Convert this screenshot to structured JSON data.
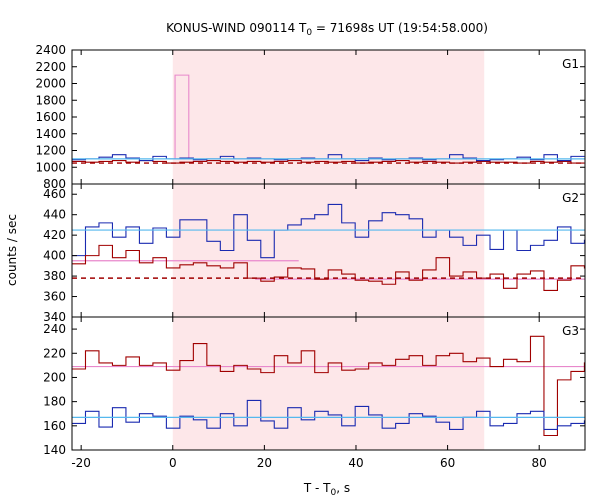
{
  "chart_data": {
    "type": "line",
    "title": "KONUS-WIND 090114 T",
    "title_sub": "0",
    "title_rest": " = 71698s UT (19:54:58.000)",
    "xlabel": "T - T",
    "xlabel_sub": "0",
    "xlabel_rest": ", s",
    "ylabel": "counts / sec",
    "xlim": [
      -22,
      90
    ],
    "x_ticks": [
      -20,
      0,
      20,
      40,
      60,
      80
    ],
    "x_tick_labels": [
      "-20",
      "0",
      "20",
      "40",
      "60",
      "80"
    ],
    "interval": {
      "start": 0,
      "end": 68,
      "color": "#fde7e9"
    },
    "colors": {
      "red": "#a00000",
      "blue": "#1a2ab0",
      "pink": "#e888cc",
      "cyan": "#55b8ee"
    },
    "bin_width": 2.944,
    "bin_start": -22,
    "panels": [
      {
        "label": "G1",
        "ylim": [
          800,
          2400
        ],
        "y_ticks": [
          800,
          1000,
          1200,
          1400,
          1600,
          1800,
          2000,
          2200,
          2400
        ],
        "y_tick_labels": [
          "800",
          "1000",
          "1200",
          "1400",
          "1600",
          "1800",
          "2000",
          "2200",
          "2400"
        ],
        "series": [
          {
            "color": "pink",
            "step_x": [
              0.5,
              3.5
            ],
            "step_y": [
              2100,
              1100
            ]
          },
          {
            "color": "red",
            "values": [
              1070,
              1060,
              1070,
              1080,
              1060,
              1080,
              1070,
              1050,
              1060,
              1070,
              1080,
              1070,
              1060,
              1070,
              1060,
              1070,
              1080,
              1060,
              1070,
              1060,
              1070,
              1050,
              1060,
              1070,
              1080,
              1060,
              1070,
              1060,
              1050,
              1060,
              1070,
              1060,
              1060,
              1050,
              1070,
              1060,
              1070,
              1050
            ]
          },
          {
            "color": "blue",
            "values": [
              1090,
              1100,
              1120,
              1150,
              1110,
              1080,
              1130,
              1100,
              1110,
              1090,
              1100,
              1130,
              1100,
              1110,
              1100,
              1090,
              1100,
              1110,
              1100,
              1150,
              1100,
              1080,
              1110,
              1090,
              1100,
              1110,
              1090,
              1100,
              1150,
              1110,
              1080,
              1090,
              1100,
              1120,
              1090,
              1150,
              1080,
              1130
            ]
          }
        ],
        "fits": [
          {
            "color": "cyan",
            "value": 1100,
            "dashed": false
          },
          {
            "color": "red",
            "value": 1050,
            "dashed": true
          }
        ]
      },
      {
        "label": "G2",
        "ylim": [
          340,
          470
        ],
        "y_ticks": [
          340,
          360,
          380,
          400,
          420,
          440,
          460
        ],
        "y_tick_labels": [
          "340",
          "360",
          "380",
          "400",
          "420",
          "440",
          "460"
        ],
        "series": [
          {
            "color": "pink",
            "value": 395,
            "x_range": [
              -22,
              27.5
            ]
          },
          {
            "color": "pink",
            "value": 377,
            "x_range": [
              18,
              90
            ]
          },
          {
            "color": "blue",
            "values": [
              400,
              428,
              432,
              418,
              428,
              412,
              427,
              418,
              435,
              435,
              414,
              405,
              440,
              415,
              398,
              425,
              430,
              436,
              440,
              450,
              432,
              418,
              434,
              442,
              440,
              436,
              418,
              425,
              418,
              410,
              420,
              406,
              425,
              405,
              410,
              415,
              428,
              412,
              415,
              420,
              405,
              428,
              412
            ]
          },
          {
            "color": "red",
            "values": [
              392,
              400,
              410,
              398,
              405,
              393,
              398,
              388,
              391,
              393,
              390,
              388,
              393,
              378,
              375,
              379,
              388,
              387,
              377,
              386,
              382,
              376,
              375,
              372,
              384,
              376,
              386,
              398,
              380,
              384,
              378,
              382,
              368,
              382,
              385,
              366,
              376,
              390,
              388,
              390,
              386,
              384,
              378
            ]
          }
        ],
        "fits": [
          {
            "color": "cyan",
            "value": 425,
            "dashed": false
          },
          {
            "color": "red",
            "value": 378,
            "dashed": true
          }
        ]
      },
      {
        "label": "G3",
        "ylim": [
          140,
          250
        ],
        "y_ticks": [
          140,
          160,
          180,
          200,
          220,
          240
        ],
        "y_tick_labels": [
          "140",
          "160",
          "180",
          "200",
          "220",
          "240"
        ],
        "series": [
          {
            "color": "pink",
            "value": 209,
            "x_range": [
              -22,
              90
            ]
          },
          {
            "color": "red",
            "values": [
              207,
              222,
              212,
              210,
              217,
              210,
              212,
              206,
              214,
              228,
              210,
              205,
              210,
              207,
              204,
              218,
              212,
              222,
              204,
              212,
              206,
              207,
              212,
              210,
              215,
              218,
              210,
              218,
              220,
              213,
              216,
              209,
              215,
              213,
              234,
              152,
              198,
              205,
              212,
              226,
              205,
              208,
              200,
              208,
              205,
              215,
              230,
              207
            ]
          },
          {
            "color": "blue",
            "values": [
              162,
              172,
              159,
              175,
              163,
              170,
              168,
              158,
              168,
              165,
              158,
              170,
              160,
              181,
              164,
              158,
              175,
              165,
              172,
              169,
              160,
              176,
              169,
              158,
              162,
              170,
              168,
              163,
              157,
              167,
              172,
              160,
              162,
              170,
              172,
              157,
              160,
              162,
              164,
              176,
              168,
              164,
              170,
              168,
              160,
              171,
              163,
              168
            ]
          }
        ],
        "fits": [
          {
            "color": "cyan",
            "value": 167,
            "dashed": false
          }
        ]
      }
    ]
  }
}
